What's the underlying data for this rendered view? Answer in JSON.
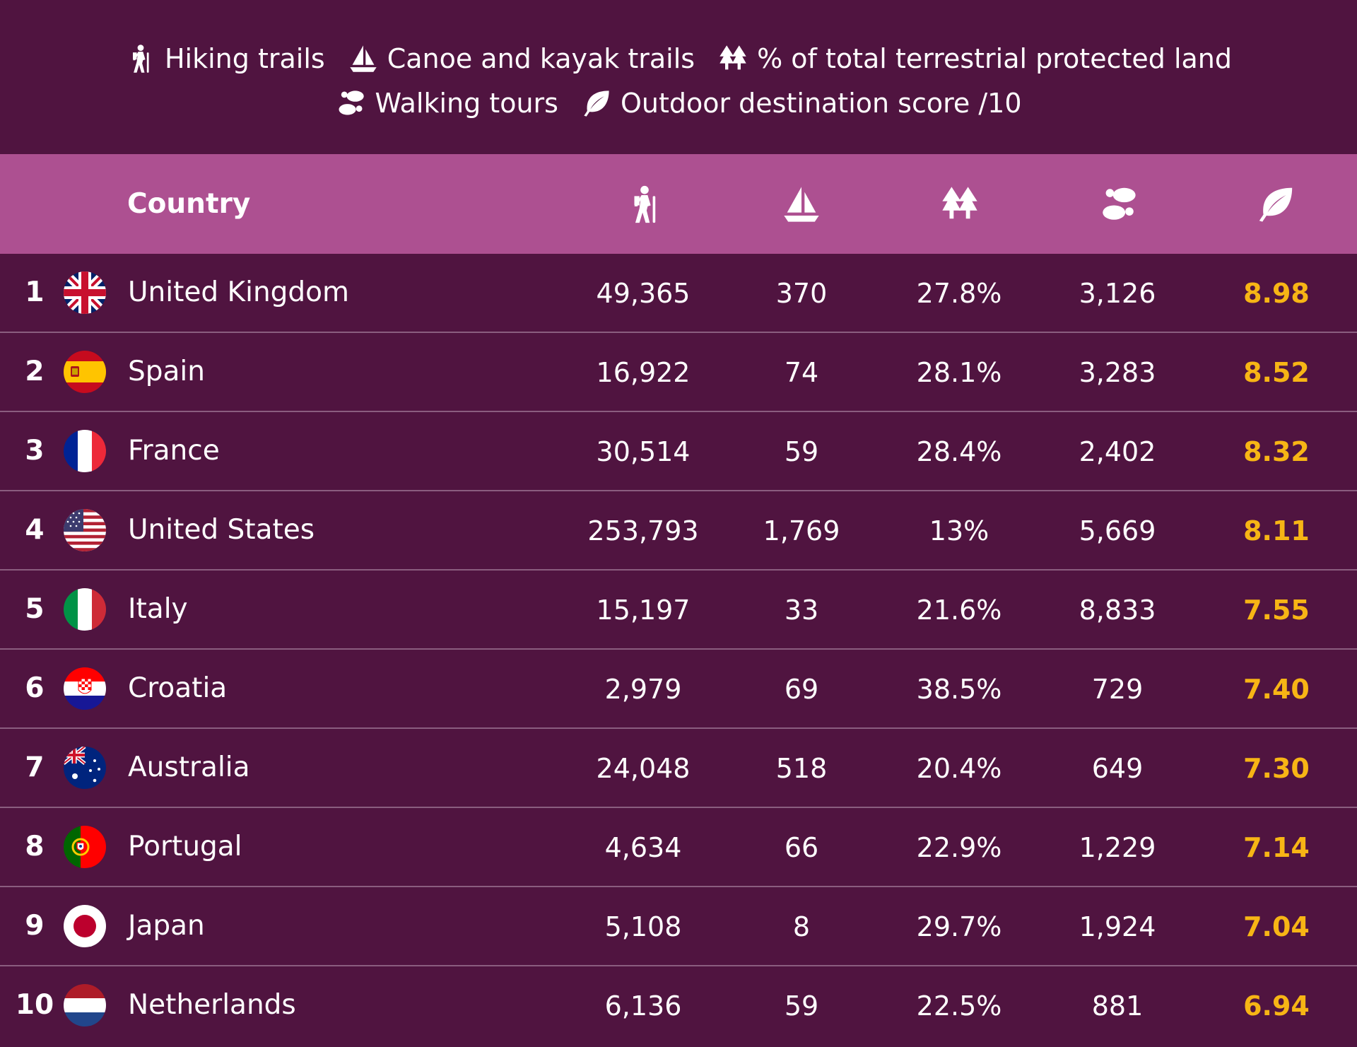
{
  "legend": {
    "line1": [
      {
        "icon": "hiker-icon",
        "label": "Hiking trails"
      },
      {
        "icon": "sailboat-icon",
        "label": "Canoe and kayak trails"
      },
      {
        "icon": "trees-icon",
        "label": "% of total terrestrial protected land"
      }
    ],
    "line2": [
      {
        "icon": "footprints-icon",
        "label": "Walking tours"
      },
      {
        "icon": "leaf-icon",
        "label": "Outdoor destination score /10"
      }
    ]
  },
  "header": {
    "country_label": "Country",
    "column_icons": [
      "hiker-icon",
      "sailboat-icon",
      "trees-icon",
      "footprints-icon",
      "leaf-icon"
    ]
  },
  "colors": {
    "background": "#501440",
    "header": "#ad5091",
    "score": "#f7b515",
    "divider": "#8a5d7f"
  },
  "chart_data": {
    "type": "table",
    "columns": [
      "Rank",
      "Country",
      "Hiking trails",
      "Canoe and kayak trails",
      "% of total terrestrial protected land",
      "Walking tours",
      "Outdoor destination score /10"
    ],
    "rows": [
      {
        "rank": "1",
        "country": "United Kingdom",
        "flag": "uk-flag-icon",
        "hiking": "49,365",
        "canoe": "370",
        "protected": "27.8%",
        "walking": "3,126",
        "score": "8.98"
      },
      {
        "rank": "2",
        "country": "Spain",
        "flag": "spain-flag-icon",
        "hiking": "16,922",
        "canoe": "74",
        "protected": "28.1%",
        "walking": "3,283",
        "score": "8.52"
      },
      {
        "rank": "3",
        "country": "France",
        "flag": "france-flag-icon",
        "hiking": "30,514",
        "canoe": "59",
        "protected": "28.4%",
        "walking": "2,402",
        "score": "8.32"
      },
      {
        "rank": "4",
        "country": "United States",
        "flag": "usa-flag-icon",
        "hiking": "253,793",
        "canoe": "1,769",
        "protected": "13%",
        "walking": "5,669",
        "score": "8.11"
      },
      {
        "rank": "5",
        "country": "Italy",
        "flag": "italy-flag-icon",
        "hiking": "15,197",
        "canoe": "33",
        "protected": "21.6%",
        "walking": "8,833",
        "score": "7.55"
      },
      {
        "rank": "6",
        "country": "Croatia",
        "flag": "croatia-flag-icon",
        "hiking": "2,979",
        "canoe": "69",
        "protected": "38.5%",
        "walking": "729",
        "score": "7.40"
      },
      {
        "rank": "7",
        "country": "Australia",
        "flag": "australia-flag-icon",
        "hiking": "24,048",
        "canoe": "518",
        "protected": "20.4%",
        "walking": "649",
        "score": "7.30"
      },
      {
        "rank": "8",
        "country": "Portugal",
        "flag": "portugal-flag-icon",
        "hiking": "4,634",
        "canoe": "66",
        "protected": "22.9%",
        "walking": "1,229",
        "score": "7.14"
      },
      {
        "rank": "9",
        "country": "Japan",
        "flag": "japan-flag-icon",
        "hiking": "5,108",
        "canoe": "8",
        "protected": "29.7%",
        "walking": "1,924",
        "score": "7.04"
      },
      {
        "rank": "10",
        "country": "Netherlands",
        "flag": "netherlands-flag-icon",
        "hiking": "6,136",
        "canoe": "59",
        "protected": "22.5%",
        "walking": "881",
        "score": "6.94"
      }
    ]
  }
}
